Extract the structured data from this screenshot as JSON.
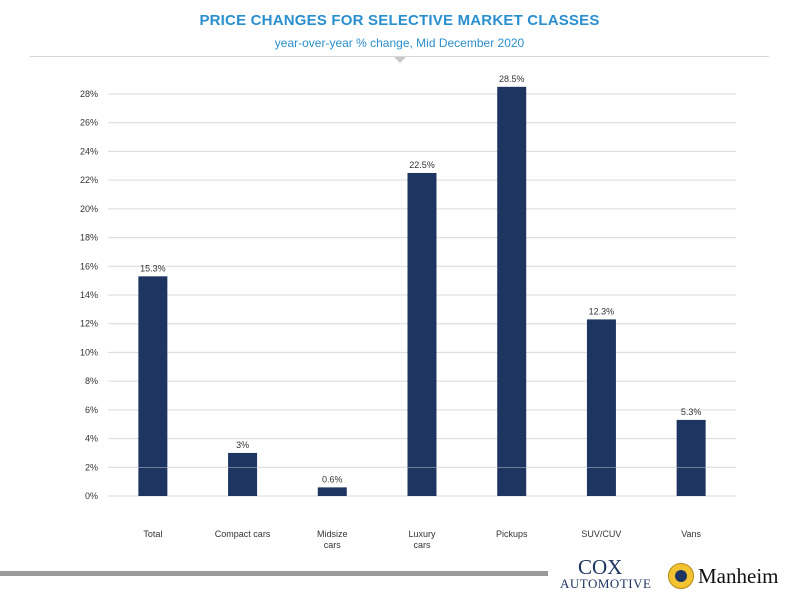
{
  "header": {
    "title": "PRICE CHANGES FOR SELECTIVE MARKET CLASSES",
    "subtitle": "year-over-year % change, Mid December 2020"
  },
  "logos": {
    "cox_line1": "COX",
    "cox_line2": "AUTOMOTIVE",
    "manheim": "Manheim"
  },
  "colors": {
    "title": "#2a8fcf",
    "bar": "#1e3561",
    "grid": "#d9d9d9"
  },
  "chart_data": {
    "type": "bar",
    "title": "PRICE CHANGES FOR SELECTIVE MARKET CLASSES",
    "subtitle": "year-over-year % change, Mid December 2020",
    "categories": [
      [
        "Total"
      ],
      [
        "Compact cars"
      ],
      [
        "Midsize",
        "cars"
      ],
      [
        "Luxury",
        "cars"
      ],
      [
        "Pickups"
      ],
      [
        "SUV/CUV"
      ],
      [
        "Vans"
      ]
    ],
    "values": [
      15.3,
      3,
      0.6,
      22.5,
      28.5,
      12.3,
      5.3
    ],
    "data_labels": [
      "15.3%",
      "3%",
      "0.6%",
      "22.5%",
      "28.5%",
      "12.3%",
      "5.3%"
    ],
    "ylim": [
      0,
      28
    ],
    "y_ticks": [
      0,
      2,
      4,
      6,
      8,
      10,
      12,
      14,
      16,
      18,
      20,
      22,
      24,
      26,
      28
    ],
    "y_tick_labels": [
      "0%",
      "2%",
      "4%",
      "6%",
      "8%",
      "10%",
      "12%",
      "14%",
      "16%",
      "18%",
      "20%",
      "22%",
      "24%",
      "26%",
      "28%"
    ],
    "grid": true,
    "xlabel": "",
    "ylabel": ""
  }
}
